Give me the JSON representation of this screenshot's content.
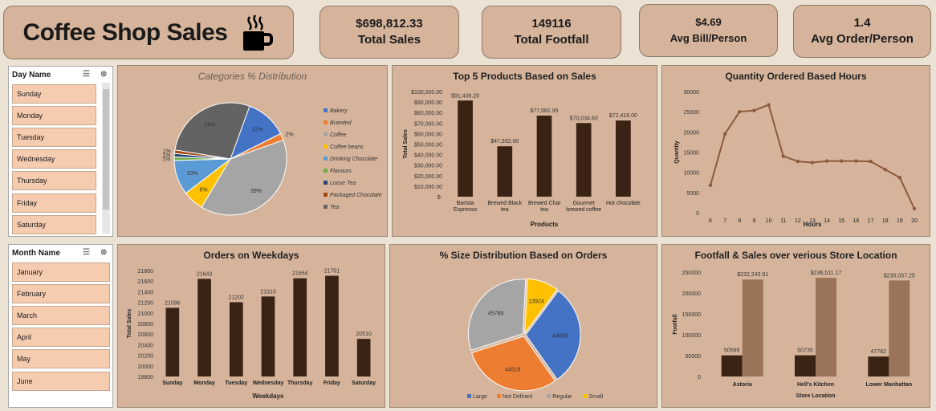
{
  "header": {
    "title": "Coffee Shop Sales",
    "icon": "coffee-cup-icon"
  },
  "kpis": [
    {
      "value": "$698,812.33",
      "label": "Total Sales"
    },
    {
      "value": "149116",
      "label": "Total Footfall"
    },
    {
      "value": "$4.69",
      "label": "Avg Bill/Person"
    },
    {
      "value": "1.4",
      "label": "Avg Order/Person"
    }
  ],
  "slicers": {
    "day": {
      "title": "Day Name",
      "items": [
        "Sunday",
        "Monday",
        "Tuesday",
        "Wednesday",
        "Thursday",
        "Friday",
        "Saturday"
      ]
    },
    "month": {
      "title": "Month Name",
      "items": [
        "January",
        "February",
        "March",
        "April",
        "May",
        "June"
      ]
    }
  },
  "colors": {
    "bar": "#3a2314",
    "bar_light": "#9b7358",
    "line": "#8b5a3a",
    "panel": "#d6b49b",
    "bg": "#ece2d3"
  },
  "chart_data": [
    {
      "id": "categories",
      "type": "pie",
      "title": "Categories % Distribution",
      "labels": [
        "Bakery",
        "Branded",
        "Coffee",
        "Coffee beans",
        "Drinking Chocolate",
        "Flavours",
        "Loose Tea",
        "Packaged Chocolate",
        "Tea"
      ],
      "values": [
        12,
        2,
        39,
        6,
        10,
        1,
        1,
        1,
        28
      ],
      "data_labels": [
        "12%",
        "2%",
        "39%",
        "6%",
        "10%",
        "1%",
        "1%",
        "1%",
        "28%"
      ],
      "colors": [
        "#4472c4",
        "#ed7d31",
        "#a5a5a5",
        "#ffc000",
        "#5b9bd5",
        "#70ad47",
        "#264478",
        "#9e480e",
        "#636363"
      ],
      "legend": "right"
    },
    {
      "id": "top5",
      "type": "bar",
      "title": "Top 5 Products Based on Sales",
      "categories": [
        "Barista Espresso",
        "Brewed Black tea",
        "Brewed Chai tea",
        "Gourmet brewed coffee",
        "Hot chocolate"
      ],
      "values": [
        91406.2,
        47932.0,
        77081.95,
        70034.6,
        72416.0
      ],
      "data_labels": [
        "$91,406.20",
        "$47,932.00",
        "$77,081.95",
        "$70,034.60",
        "$72,416.00"
      ],
      "xlabel": "Products",
      "ylabel": "Total Sales",
      "ylim": [
        0,
        100000
      ],
      "ticks": [
        "$-",
        "$10,000.00",
        "$20,000.00",
        "$30,000.00",
        "$40,000.00",
        "$50,000.00",
        "$60,000.00",
        "$70,000.00",
        "$80,000.00",
        "$90,000.00",
        "$100,000.00"
      ]
    },
    {
      "id": "hours",
      "type": "line",
      "title": "Quantity Ordered Based Hours",
      "x": [
        6,
        7,
        8,
        9,
        10,
        11,
        12,
        13,
        14,
        15,
        16,
        17,
        18,
        19,
        20
      ],
      "values": [
        6800,
        19500,
        25000,
        25300,
        26700,
        14000,
        12700,
        12400,
        12800,
        12800,
        12800,
        12700,
        10700,
        8700,
        1000
      ],
      "xlabel": "Hours",
      "ylabel": "Quantity",
      "ylim": [
        0,
        30000
      ],
      "ticks": [
        "0",
        "5000",
        "10000",
        "15000",
        "20000",
        "25000",
        "30000"
      ]
    },
    {
      "id": "weekdays",
      "type": "bar",
      "title": "Orders on Weekdays",
      "categories": [
        "Sunday",
        "Monday",
        "Tuesday",
        "Wednesday",
        "Thursday",
        "Friday",
        "Saturday"
      ],
      "values": [
        21096,
        21643,
        21202,
        21310,
        21654,
        21701,
        20510
      ],
      "data_labels": [
        "21096",
        "21643",
        "21202",
        "21310",
        "21654",
        "21701",
        "20510"
      ],
      "xlabel": "Weekdays",
      "ylabel": "Total Sales",
      "ylim": [
        19800,
        21800
      ],
      "ticks": [
        "19800",
        "20000",
        "20200",
        "20400",
        "20600",
        "20800",
        "21000",
        "21200",
        "21400",
        "21600",
        "21800"
      ]
    },
    {
      "id": "sizes",
      "type": "pie",
      "title": "% Size Distribution Based on Orders",
      "labels": [
        "Large",
        "Not Defined",
        "Regular",
        "Small"
      ],
      "values": [
        44885,
        44518,
        45789,
        13924
      ],
      "data_labels": [
        "44885",
        "44518",
        "45789",
        "13924"
      ],
      "colors": [
        "#4472c4",
        "#ed7d31",
        "#a5a5a5",
        "#ffc000"
      ],
      "legend": "bottom"
    },
    {
      "id": "stores",
      "type": "bar",
      "title": "Footfall & Sales over verious Store Location",
      "categories": [
        "Astoria",
        "Hell's Kitchen",
        "Lower Manhattan"
      ],
      "series": [
        {
          "values": [
            50599,
            50735,
            47782
          ],
          "data_labels": [
            "50599",
            "50735",
            "47782"
          ]
        },
        {
          "values": [
            232243.91,
            236511.17,
            230057.25
          ],
          "data_labels": [
            "$232,243.91",
            "$236,511.17",
            "$230,057.25"
          ]
        }
      ],
      "xlabel": "Store Location",
      "ylabel": "Footfall",
      "ylim": [
        0,
        250000
      ],
      "ticks": [
        "0",
        "50000",
        "100000",
        "150000",
        "200000",
        "250000"
      ]
    }
  ]
}
